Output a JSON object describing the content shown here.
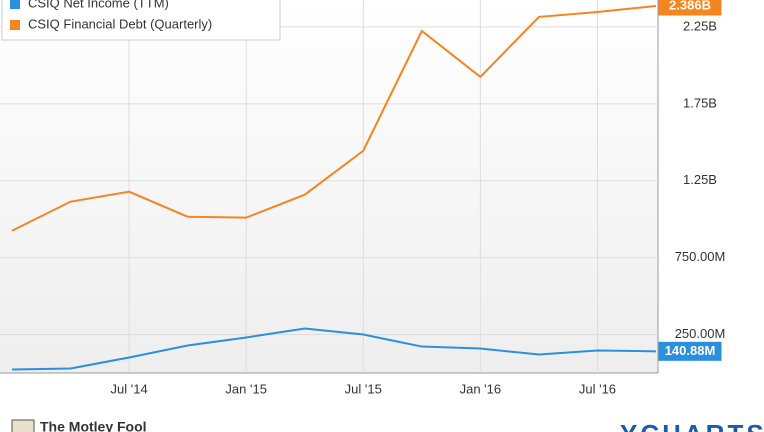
{
  "chart_data": {
    "type": "line",
    "categories": [
      null,
      null,
      "Jul '14",
      null,
      "Jan '15",
      null,
      "Jul '15",
      null,
      "Jan '16",
      null,
      "Jul '16",
      null
    ],
    "series": [
      {
        "name": "CSIQ Net Income (TTM)",
        "color": "#2b8fe0",
        "values": [
          23000000,
          29000000,
          101000000,
          179000000,
          231000000,
          289000000,
          250000000,
          172000000,
          159000000,
          120000000,
          146000000,
          140880000
        ],
        "value_labels": [
          null,
          null,
          null,
          null,
          null,
          null,
          null,
          null,
          null,
          null,
          null,
          "140.88M"
        ]
      },
      {
        "name": "CSIQ Financial Debt (Quarterly)",
        "color": "#f5851f",
        "values": [
          925000000,
          1114000000,
          1179000000,
          1016000000,
          1010000000,
          1159000000,
          1445000000,
          2224000000,
          1925000000,
          2315000000,
          2347000000,
          2386000000
        ],
        "value_labels": [
          null,
          null,
          null,
          null,
          null,
          null,
          null,
          null,
          null,
          null,
          null,
          "2.386B"
        ]
      }
    ],
    "ylim": [
      0,
      2425000000
    ],
    "yticks": [
      {
        "value": 250000000,
        "label": "250.00M"
      },
      {
        "value": 750000000,
        "label": "750.00M"
      },
      {
        "value": 1250000000,
        "label": "1.25B"
      },
      {
        "value": 1750000000,
        "label": "1.75B"
      },
      {
        "value": 2250000000,
        "label": "2.25B"
      }
    ],
    "grid": true,
    "legend": "top-left",
    "footer_left": "The Motley Fool",
    "footer_right": "YCHARTS"
  }
}
